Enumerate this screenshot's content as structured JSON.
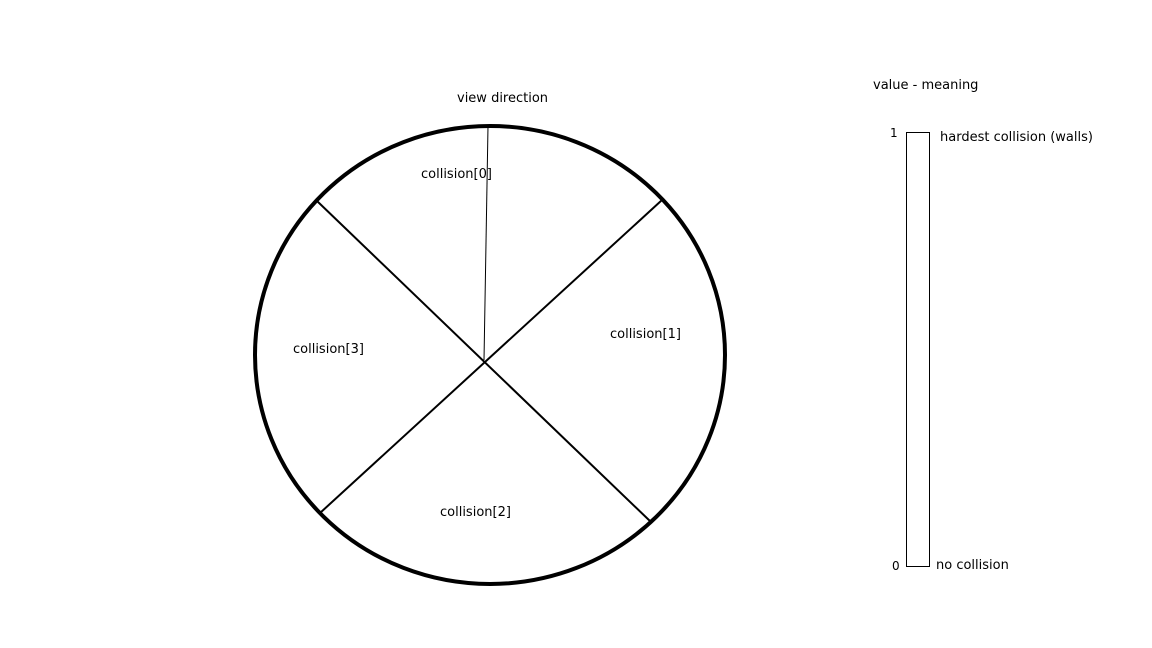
{
  "diagram": {
    "view_direction_label": "view direction",
    "sectors": [
      {
        "label": "collision[0]"
      },
      {
        "label": "collision[1]"
      },
      {
        "label": "collision[2]"
      },
      {
        "label": "collision[3]"
      }
    ]
  },
  "legend": {
    "title": "value - meaning",
    "scale": {
      "top_value": "1",
      "top_meaning": "hardest collision (walls)",
      "bottom_value": "0",
      "bottom_meaning": "no collision"
    }
  },
  "colors": {
    "stroke": "#000000",
    "background": "#ffffff"
  }
}
